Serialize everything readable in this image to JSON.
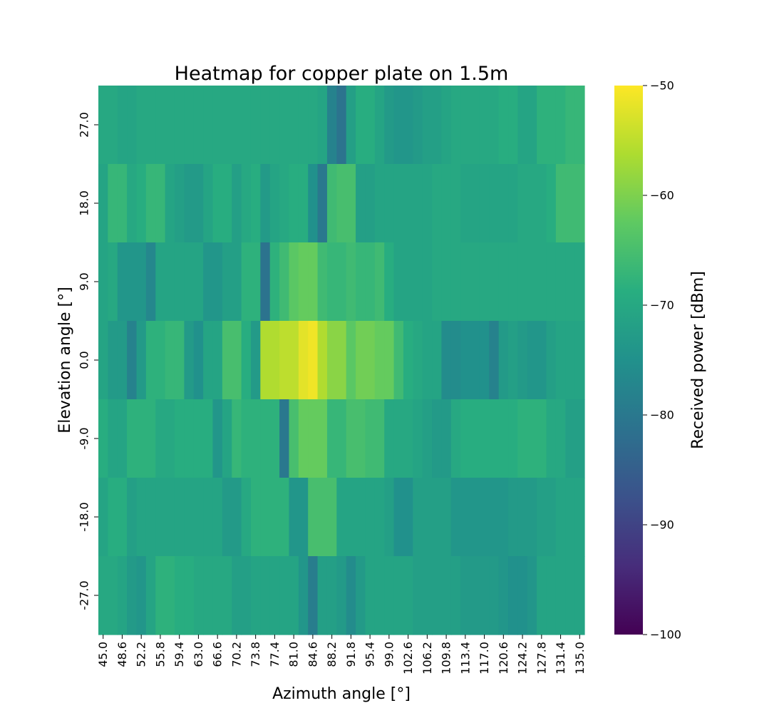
{
  "chart_data": {
    "type": "heatmap",
    "title": "Heatmap for copper plate on 1.5m",
    "xlabel": "Azimuth angle [°]",
    "ylabel": "Elevation angle [°]",
    "colorbar_label": "Received power [dBm]",
    "colormap": "viridis",
    "vmin": -100,
    "vmax": -50,
    "colorbar_ticks": [
      -50,
      -60,
      -70,
      -80,
      -90,
      -100
    ],
    "colorbar_tick_labels": [
      "−50",
      "−60",
      "−70",
      "−80",
      "−90",
      "−100"
    ],
    "x_tick_labels": [
      "45.0",
      "48.6",
      "52.2",
      "55.8",
      "59.4",
      "63.0",
      "66.6",
      "70.2",
      "73.8",
      "77.4",
      "81.0",
      "84.6",
      "88.2",
      "91.8",
      "95.4",
      "99.0",
      "102.6",
      "106.2",
      "109.8",
      "113.4",
      "117.0",
      "120.6",
      "124.2",
      "127.8",
      "131.4",
      "135.0"
    ],
    "y_tick_labels": [
      "27.0",
      "18.0",
      "9.0",
      "0.0",
      "-9.0",
      "-18.0",
      "-27.0"
    ],
    "azimuth_start": 45.0,
    "azimuth_step": 1.8,
    "azimuth_count": 51,
    "elevations": [
      27.0,
      18.0,
      9.0,
      0.0,
      -9.0,
      -18.0,
      -27.0
    ],
    "values": [
      [
        -70,
        -70,
        -71,
        -71,
        -70,
        -70,
        -70,
        -70,
        -70,
        -70,
        -70,
        -70,
        -70,
        -70,
        -70,
        -70,
        -70,
        -70,
        -70,
        -70,
        -70,
        -70,
        -70,
        -71,
        -78,
        -81,
        -72,
        -69,
        -69,
        -71,
        -73,
        -74,
        -74,
        -73,
        -72,
        -72,
        -71,
        -70,
        -70,
        -70,
        -70,
        -70,
        -69,
        -69,
        -71,
        -71,
        -68,
        -68,
        -68,
        -67,
        -67
      ],
      [
        -71,
        -67,
        -67,
        -70,
        -69,
        -67,
        -67,
        -71,
        -72,
        -73,
        -73,
        -71,
        -69,
        -69,
        -72,
        -70,
        -69,
        -73,
        -71,
        -70,
        -69,
        -69,
        -75,
        -80,
        -66,
        -65,
        -65,
        -72,
        -72,
        -71,
        -71,
        -71,
        -71,
        -71,
        -71,
        -70,
        -70,
        -70,
        -71,
        -71,
        -71,
        -71,
        -71,
        -71,
        -70,
        -70,
        -70,
        -69,
        -66,
        -66,
        -66
      ],
      [
        -71,
        -70,
        -74,
        -74,
        -74,
        -77,
        -71,
        -71,
        -71,
        -71,
        -71,
        -74,
        -74,
        -72,
        -72,
        -68,
        -68,
        -81,
        -68,
        -66,
        -63,
        -62,
        -62,
        -66,
        -67,
        -67,
        -66,
        -67,
        -67,
        -66,
        -69,
        -71,
        -71,
        -71,
        -71,
        -70,
        -70,
        -70,
        -70,
        -70,
        -70,
        -70,
        -70,
        -70,
        -70,
        -70,
        -70,
        -70,
        -70,
        -70,
        -70
      ],
      [
        -71,
        -73,
        -73,
        -78,
        -73,
        -68,
        -68,
        -67,
        -67,
        -73,
        -75,
        -71,
        -71,
        -65,
        -65,
        -69,
        -73,
        -56,
        -56,
        -55,
        -55,
        -52,
        -51,
        -56,
        -59,
        -59,
        -63,
        -61,
        -61,
        -62,
        -62,
        -66,
        -69,
        -70,
        -71,
        -71,
        -76,
        -76,
        -75,
        -75,
        -75,
        -78,
        -73,
        -72,
        -73,
        -74,
        -74,
        -72,
        -71,
        -71,
        -71
      ],
      [
        -69,
        -71,
        -71,
        -68,
        -68,
        -68,
        -70,
        -70,
        -69,
        -69,
        -69,
        -69,
        -74,
        -71,
        -67,
        -68,
        -68,
        -68,
        -68,
        -80,
        -65,
        -62,
        -62,
        -62,
        -67,
        -67,
        -65,
        -65,
        -66,
        -66,
        -70,
        -70,
        -70,
        -71,
        -72,
        -73,
        -73,
        -70,
        -69,
        -69,
        -69,
        -69,
        -69,
        -69,
        -68,
        -68,
        -68,
        -70,
        -70,
        -72,
        -72
      ],
      [
        -71,
        -69,
        -69,
        -72,
        -71,
        -71,
        -71,
        -71,
        -71,
        -71,
        -71,
        -71,
        -71,
        -73,
        -73,
        -70,
        -68,
        -68,
        -68,
        -68,
        -74,
        -74,
        -65,
        -65,
        -65,
        -71,
        -71,
        -71,
        -71,
        -71,
        -72,
        -75,
        -75,
        -72,
        -72,
        -72,
        -72,
        -74,
        -74,
        -74,
        -74,
        -74,
        -74,
        -73,
        -73,
        -73,
        -72,
        -72,
        -71,
        -71,
        -71
      ],
      [
        -70,
        -70,
        -71,
        -73,
        -74,
        -71,
        -68,
        -68,
        -69,
        -69,
        -70,
        -70,
        -70,
        -70,
        -72,
        -72,
        -71,
        -71,
        -71,
        -71,
        -71,
        -74,
        -79,
        -72,
        -72,
        -73,
        -76,
        -73,
        -71,
        -71,
        -71,
        -71,
        -71,
        -72,
        -72,
        -72,
        -72,
        -72,
        -73,
        -73,
        -73,
        -73,
        -74,
        -75,
        -75,
        -74,
        -71,
        -71,
        -71,
        -71,
        -71
      ]
    ]
  }
}
